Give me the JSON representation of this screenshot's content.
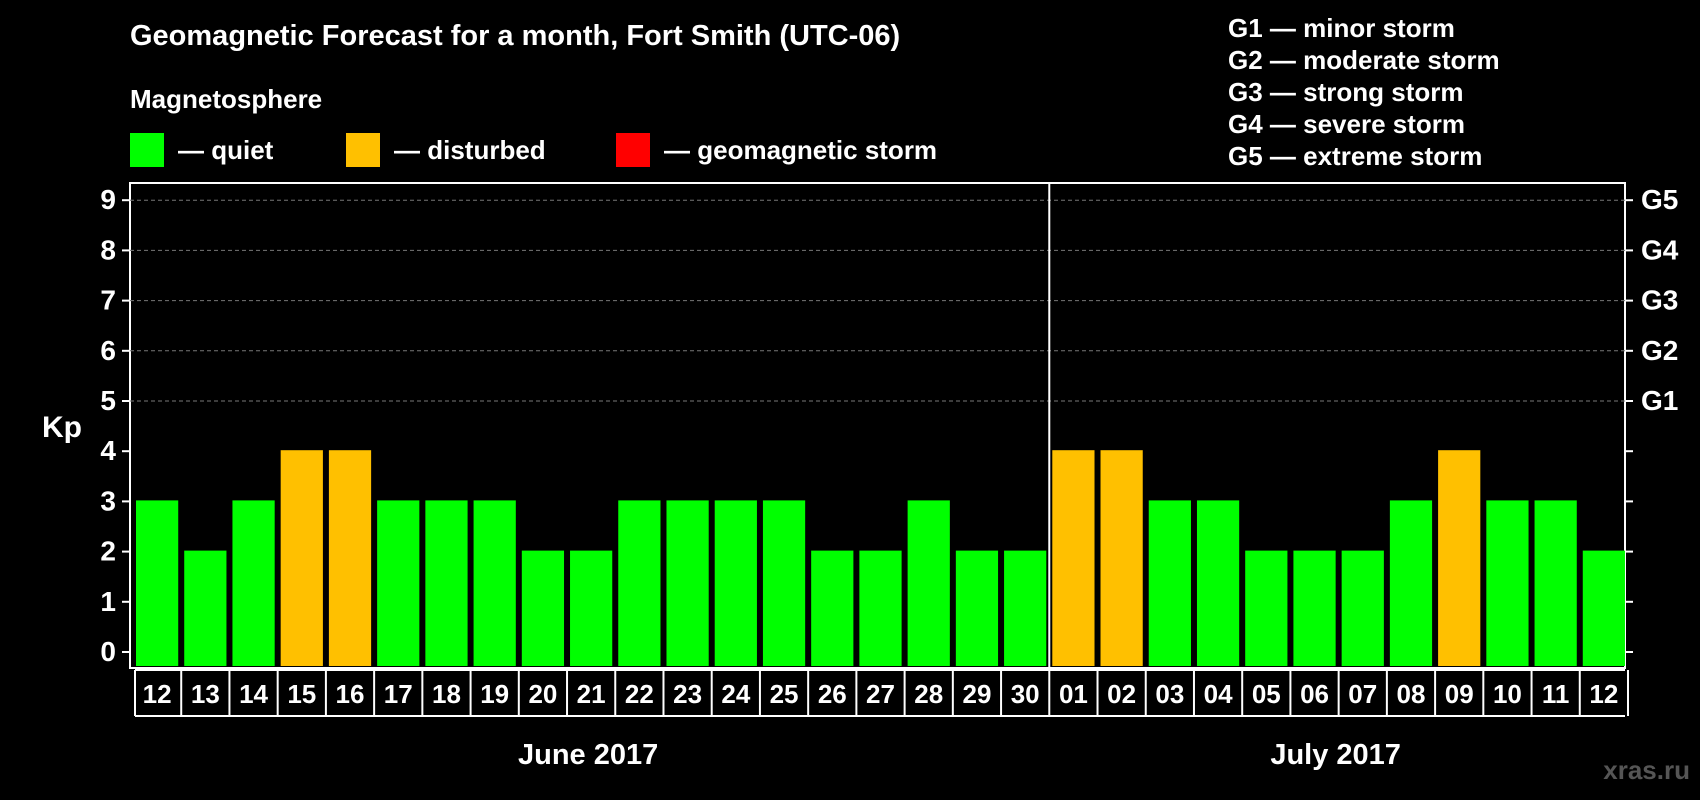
{
  "title": "Geomagnetic Forecast for a month, Fort Smith (UTC-06)",
  "magnetosphere": {
    "title": "Magnetosphere",
    "legend": [
      {
        "label": "— quiet",
        "color": "#00ff00"
      },
      {
        "label": "— disturbed",
        "color": "#ffc000"
      },
      {
        "label": "— geomagnetic storm",
        "color": "#ff0000"
      }
    ]
  },
  "storm_scale": [
    "G1 — minor storm",
    "G2 — moderate storm",
    "G3 — strong storm",
    "G4 — severe storm",
    "G5 — extreme storm"
  ],
  "watermark": "xras.ru",
  "chart_data": {
    "type": "bar",
    "ylabel": "Kp",
    "ylim": [
      0,
      9
    ],
    "yticks": [
      "0",
      "1",
      "2",
      "3",
      "4",
      "5",
      "6",
      "7",
      "8",
      "9"
    ],
    "right_ticks": [
      {
        "kp": 5,
        "label": "G1"
      },
      {
        "kp": 6,
        "label": "G2"
      },
      {
        "kp": 7,
        "label": "G3"
      },
      {
        "kp": 8,
        "label": "G4"
      },
      {
        "kp": 9,
        "label": "G5"
      }
    ],
    "grid": true,
    "colors": {
      "quiet": "#00ff00",
      "disturbed": "#ffc000",
      "storm": "#ff0000"
    },
    "categories": [
      "12",
      "13",
      "14",
      "15",
      "16",
      "17",
      "18",
      "19",
      "20",
      "21",
      "22",
      "23",
      "24",
      "25",
      "26",
      "27",
      "28",
      "29",
      "30",
      "01",
      "02",
      "03",
      "04",
      "05",
      "06",
      "07",
      "08",
      "09",
      "10",
      "11",
      "12"
    ],
    "values": [
      3,
      2,
      3,
      4,
      4,
      3,
      3,
      3,
      2,
      2,
      3,
      3,
      3,
      3,
      2,
      2,
      3,
      2,
      2,
      4,
      4,
      3,
      3,
      2,
      2,
      2,
      3,
      4,
      3,
      3,
      2
    ],
    "months": [
      {
        "label": "June 2017",
        "start": 0,
        "count": 19
      },
      {
        "label": "July 2017",
        "start": 19,
        "count": 12
      }
    ]
  }
}
